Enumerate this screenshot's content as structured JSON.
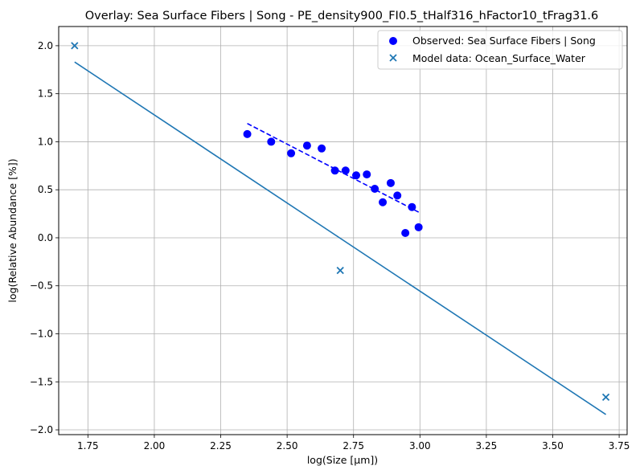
{
  "chart_data": {
    "type": "scatter",
    "title": "Overlay: Sea Surface Fibers | Song - PE_density900_FI0.5_tHalf316_hFactor10_tFrag31.6",
    "xlabel": "log(Size [μm])",
    "ylabel": "log(Relative Abundance [%])",
    "xlim": [
      1.64,
      3.78
    ],
    "ylim": [
      -2.05,
      2.2
    ],
    "grid": true,
    "legend_position": "top-right",
    "x_ticks": [
      "1.75",
      "2.00",
      "2.25",
      "2.50",
      "2.75",
      "3.00",
      "3.25",
      "3.50",
      "3.75"
    ],
    "x_tick_values": [
      1.75,
      2.0,
      2.25,
      2.5,
      2.75,
      3.0,
      3.25,
      3.5,
      3.75
    ],
    "y_ticks": [
      "−2.0",
      "−1.5",
      "−1.0",
      "−0.5",
      "0.0",
      "0.5",
      "1.0",
      "1.5",
      "2.0"
    ],
    "y_tick_values": [
      -2.0,
      -1.5,
      -1.0,
      -0.5,
      0.0,
      0.5,
      1.0,
      1.5,
      2.0
    ],
    "series": [
      {
        "name": "Observed: Sea Surface Fibers | Song",
        "kind": "scatter-circle",
        "color": "#0000ff",
        "x": [
          2.35,
          2.44,
          2.515,
          2.575,
          2.63,
          2.68,
          2.72,
          2.76,
          2.8,
          2.83,
          2.86,
          2.89,
          2.915,
          2.945,
          2.97,
          2.995
        ],
        "y": [
          1.08,
          1.0,
          0.88,
          0.96,
          0.93,
          0.7,
          0.7,
          0.65,
          0.66,
          0.51,
          0.37,
          0.57,
          0.44,
          0.05,
          0.32,
          0.11
        ]
      },
      {
        "name": "Model data: Ocean_Surface_Water",
        "kind": "scatter-x",
        "color": "#1f77b4",
        "x": [
          1.7,
          2.7,
          3.7
        ],
        "y": [
          2.0,
          -0.34,
          -1.66
        ]
      }
    ],
    "lines": [
      {
        "kind": "dashed",
        "color": "#0000ff",
        "x": [
          2.35,
          3.0
        ],
        "y": [
          1.19,
          0.26
        ]
      },
      {
        "kind": "solid",
        "color": "#1f77b4",
        "x": [
          1.7,
          3.7
        ],
        "y": [
          1.83,
          -1.84
        ]
      }
    ]
  }
}
